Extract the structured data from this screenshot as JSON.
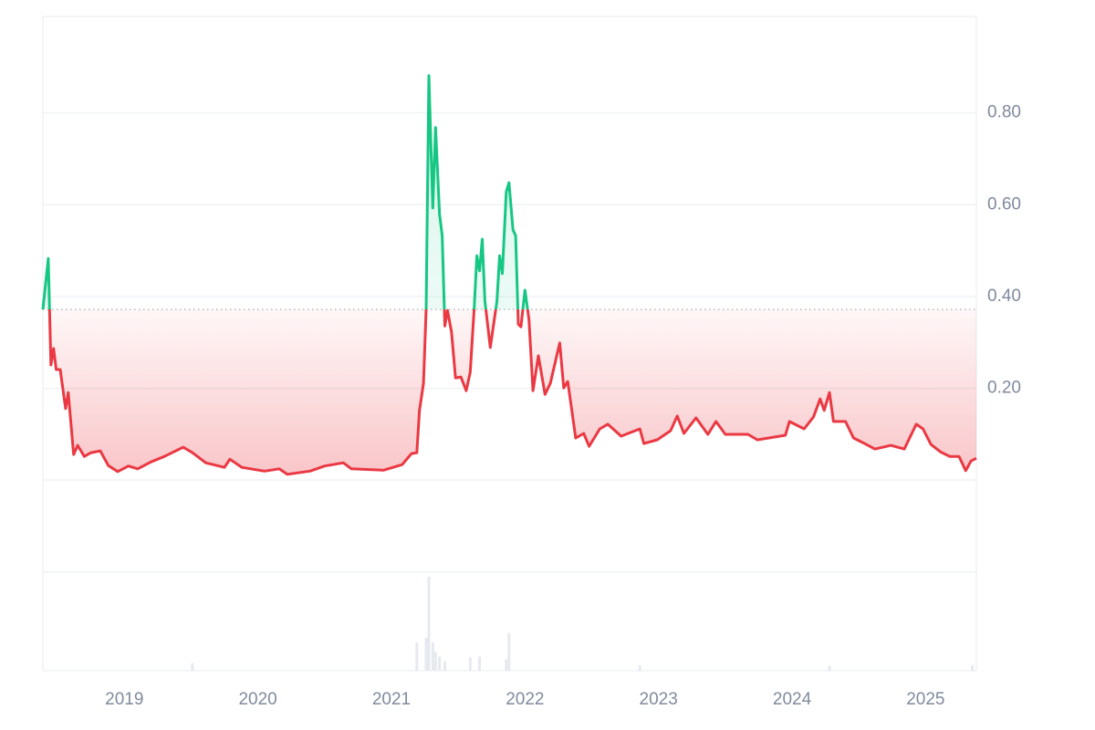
{
  "chart_data": {
    "type": "line",
    "x": [
      2018.39,
      2018.43,
      2018.45,
      2018.47,
      2018.49,
      2018.52,
      2018.56,
      2018.58,
      2018.62,
      2018.65,
      2018.7,
      2018.75,
      2018.82,
      2018.88,
      2018.95,
      2019.03,
      2019.1,
      2019.2,
      2019.3,
      2019.44,
      2019.51,
      2019.61,
      2019.75,
      2019.79,
      2019.88,
      2020.05,
      2020.16,
      2020.22,
      2020.39,
      2020.5,
      2020.64,
      2020.7,
      2020.94,
      2021.08,
      2021.15,
      2021.19,
      2021.21,
      2021.24,
      2021.26,
      2021.28,
      2021.31,
      2021.33,
      2021.36,
      2021.38,
      2021.4,
      2021.42,
      2021.45,
      2021.48,
      2021.52,
      2021.56,
      2021.59,
      2021.62,
      2021.64,
      2021.66,
      2021.68,
      2021.7,
      2021.74,
      2021.79,
      2021.81,
      2021.83,
      2021.86,
      2021.88,
      2021.91,
      2021.93,
      2021.95,
      2021.97,
      2022.0,
      2022.03,
      2022.06,
      2022.1,
      2022.15,
      2022.19,
      2022.26,
      2022.29,
      2022.32,
      2022.38,
      2022.44,
      2022.48,
      2022.56,
      2022.62,
      2022.72,
      2022.86,
      2022.89,
      2022.99,
      2023.09,
      2023.14,
      2023.19,
      2023.28,
      2023.37,
      2023.43,
      2023.5,
      2023.67,
      2023.74,
      2023.95,
      2023.98,
      2024.09,
      2024.16,
      2024.21,
      2024.24,
      2024.28,
      2024.31,
      2024.4,
      2024.46,
      2024.53,
      2024.62,
      2024.74,
      2024.84,
      2024.93,
      2024.98,
      2025.04,
      2025.11,
      2025.18,
      2025.25,
      2025.3,
      2025.34,
      2025.38
    ],
    "values": [
      0.372,
      0.483,
      0.251,
      0.287,
      0.241,
      0.241,
      0.156,
      0.191,
      0.056,
      0.076,
      0.052,
      0.06,
      0.064,
      0.032,
      0.019,
      0.031,
      0.025,
      0.04,
      0.052,
      0.072,
      0.06,
      0.038,
      0.028,
      0.046,
      0.028,
      0.02,
      0.025,
      0.013,
      0.02,
      0.031,
      0.038,
      0.025,
      0.022,
      0.034,
      0.058,
      0.06,
      0.152,
      0.211,
      0.372,
      0.881,
      0.593,
      0.768,
      0.579,
      0.533,
      0.336,
      0.37,
      0.323,
      0.223,
      0.225,
      0.195,
      0.235,
      0.376,
      0.489,
      0.456,
      0.525,
      0.39,
      0.289,
      0.39,
      0.489,
      0.45,
      0.628,
      0.648,
      0.545,
      0.533,
      0.34,
      0.334,
      0.414,
      0.35,
      0.195,
      0.271,
      0.187,
      0.211,
      0.299,
      0.201,
      0.215,
      0.092,
      0.102,
      0.074,
      0.112,
      0.122,
      0.096,
      0.112,
      0.08,
      0.088,
      0.108,
      0.14,
      0.102,
      0.136,
      0.1,
      0.128,
      0.1,
      0.1,
      0.088,
      0.098,
      0.128,
      0.112,
      0.138,
      0.177,
      0.152,
      0.191,
      0.128,
      0.128,
      0.092,
      0.082,
      0.068,
      0.076,
      0.068,
      0.122,
      0.112,
      0.078,
      0.062,
      0.052,
      0.052,
      0.021,
      0.042,
      0.048
    ],
    "baseline": 0.372,
    "up_color": "#16c784",
    "down_color": "#ea3943",
    "xlim": [
      2018.39,
      2025.38
    ],
    "xticks": [
      2019,
      2020,
      2021,
      2022,
      2023,
      2024,
      2025
    ],
    "ylim": [
      -0.2,
      1.0
    ],
    "yticks": [
      {
        "value": 0.2,
        "label": "0.20"
      },
      {
        "value": 0.4,
        "label": "0.40"
      },
      {
        "value": 0.6,
        "label": "0.60"
      },
      {
        "value": 0.8,
        "label": "0.80"
      }
    ],
    "grid": true,
    "volume": {
      "color": "#e6e9ee",
      "x": [
        2019.51,
        2021.19,
        2021.26,
        2021.28,
        2021.31,
        2021.33,
        2021.36,
        2021.4,
        2021.59,
        2021.66,
        2021.86,
        2021.88,
        2022.86,
        2024.28,
        2025.35
      ],
      "values": [
        8,
        30,
        35,
        100,
        30,
        20,
        15,
        10,
        14,
        15,
        12,
        40,
        6,
        5,
        6
      ]
    }
  }
}
